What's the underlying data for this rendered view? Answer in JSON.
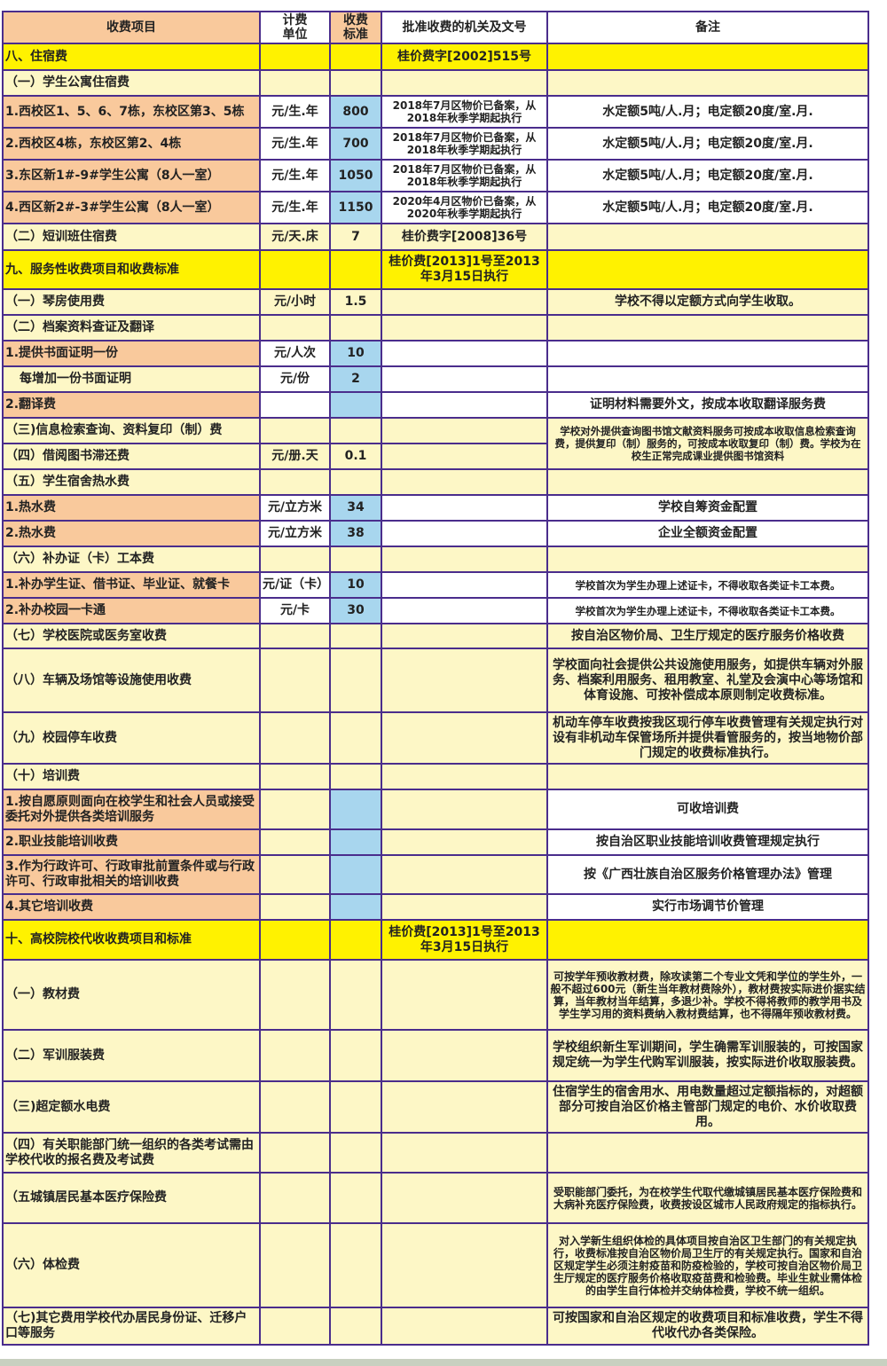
{
  "header": {
    "item": "收费项目",
    "unit": "计费\n单位",
    "price": "收费\n标准",
    "authority": "批准收费的机关及文号",
    "remark": "备注"
  },
  "colors": {
    "border": "#4a2d8c",
    "section": "#fff200",
    "subsection": "#fdf7c6",
    "item": "#f9c99c",
    "price_cell": "#a8d6ee"
  },
  "rows": [
    {
      "kind": "section",
      "item": "八、住宿费",
      "unit": "",
      "price": "",
      "authority": "桂价费字[2002]515号",
      "remark": ""
    },
    {
      "kind": "sub",
      "item": "（一）学生公寓住宿费",
      "unit": "",
      "price": "",
      "authority": "",
      "remark": ""
    },
    {
      "kind": "item",
      "item": "1.西校区1、5、6、7栋，东校区第3、5栋",
      "unit": "元/生.年",
      "price": "800",
      "authority": "2018年7月区物价已备案，从2018年秋季学期起执行",
      "remark": "水定额5吨/人.月；电定额20度/室.月."
    },
    {
      "kind": "item",
      "item": "2.西校区4栋，东校区第2、4栋",
      "unit": "元/生.年",
      "price": "700",
      "authority": "2018年7月区物价已备案，从2018年秋季学期起执行",
      "remark": "水定额5吨/人.月；电定额20度/室.月."
    },
    {
      "kind": "item",
      "item": "3.东区新1#-9#学生公寓（8人一室）",
      "unit": "元/生.年",
      "price": "1050",
      "authority": "2018年7月区物价已备案，从2018年秋季学期起执行",
      "remark": "水定额5吨/人.月；电定额20度/室.月."
    },
    {
      "kind": "item",
      "item": "4.西区新2#-3#学生公寓（8人一室）",
      "unit": "元/生.年",
      "price": "1150",
      "authority": "2020年4月区物价已备案，从2020年秋季学期起执行",
      "remark": "水定额5吨/人.月；电定额20度/室.月."
    },
    {
      "kind": "sub",
      "item": "（二）短训班住宿费",
      "unit": "元/天.床",
      "price": "7",
      "authority": "桂价费字[2008]36号",
      "remark": ""
    },
    {
      "kind": "section",
      "item": "九、服务性收费项目和收费标准",
      "unit": "",
      "price": "",
      "authority": "桂价费[2013]1号至2013年3月15日执行",
      "remark": ""
    },
    {
      "kind": "sub",
      "item": "（一）琴房使用费",
      "unit": "元/小时",
      "price": "1.5",
      "authority": "",
      "remark": "学校不得以定额方式向学生收取。"
    },
    {
      "kind": "sub",
      "item": "（二）档案资料查证及翻译",
      "unit": "",
      "price": "",
      "authority": "",
      "remark": ""
    },
    {
      "kind": "item",
      "item": "1.提供书面证明一份",
      "unit": "元/人次",
      "price": "10",
      "authority": "",
      "remark": ""
    },
    {
      "kind": "item2",
      "item": "　每增加一份书面证明",
      "unit": "元/份",
      "price": "2",
      "authority": "",
      "remark": ""
    },
    {
      "kind": "item",
      "item": "2.翻译费",
      "unit": "",
      "price": "",
      "authority": "",
      "remark": "证明材料需要外文，按成本收取翻译服务费"
    },
    {
      "kind": "sub",
      "item": "（三)信息检索查询、资料复印（制）费",
      "unit": "",
      "price": "",
      "authority": "",
      "remark": "学校对外提供查询图书馆文献资料服务可按成本收取信息检索查询费，提供复印（制）服务的，可按成本收取复印（制）费。学校为在校生正常完成课业提供图书馆资料",
      "remark_span": 2
    },
    {
      "kind": "sub",
      "item": "（四）借阅图书滞还费",
      "unit": "元/册.天",
      "price": "0.1",
      "authority": ""
    },
    {
      "kind": "sub",
      "item": "（五）学生宿舍热水费",
      "unit": "",
      "price": "",
      "authority": "",
      "remark": ""
    },
    {
      "kind": "item",
      "item": "1.热水费",
      "unit": "元/立方米",
      "price": "34",
      "authority": "",
      "remark": "学校自筹资金配置"
    },
    {
      "kind": "item",
      "item": "2.热水费",
      "unit": "元/立方米",
      "price": "38",
      "authority": "",
      "remark": "企业全额资金配置"
    },
    {
      "kind": "sub",
      "item": "（六）补办证（卡）工本费",
      "unit": "",
      "price": "",
      "authority": "",
      "remark": ""
    },
    {
      "kind": "item",
      "item": "1.补办学生证、借书证、毕业证、就餐卡",
      "unit": "元/证（卡）",
      "price": "10",
      "authority": "",
      "remark": "学校首次为学生办理上述证卡，不得收取各类证卡工本费。"
    },
    {
      "kind": "item",
      "item": "2.补办校园一卡通",
      "unit": "元/卡",
      "price": "30",
      "authority": "",
      "remark": "学校首次为学生办理上述证卡，不得收取各类证卡工本费。"
    },
    {
      "kind": "sub",
      "item": "（七）学校医院或医务室收费",
      "unit": "",
      "price": "",
      "authority": "",
      "remark": "按自治区物价局、卫生厅规定的医疗服务价格收费"
    },
    {
      "kind": "sub",
      "item": "（八）车辆及场馆等设施使用收费",
      "unit": "",
      "price": "",
      "authority": "",
      "remark": "学校面向社会提供公共设施使用服务，如提供车辆对外服务、档案利用服务、租用教室、礼堂及会演中心等场馆和体育设施、可按补偿成本原则制定收费标准。"
    },
    {
      "kind": "sub",
      "item": "（九）校园停车收费",
      "unit": "",
      "price": "",
      "authority": "",
      "remark": "机动车停车收费按我区现行停车收费管理有关规定执行对设有非机动车保管场所并提供看管服务的，按当地物价部门规定的收费标准执行。"
    },
    {
      "kind": "sub",
      "item": "（十）培训费",
      "unit": "",
      "price": "",
      "authority": "",
      "remark": ""
    },
    {
      "kind": "item",
      "item": "1.按自愿原则面向在校学生和社会人员或接受委托对外提供各类培训服务",
      "unit": "",
      "price": "",
      "authority": "",
      "remark": "可收培训费"
    },
    {
      "kind": "item",
      "item": "2.职业技能培训收费",
      "unit": "",
      "price": "",
      "authority": "",
      "remark": "按自治区职业技能培训收费管理规定执行"
    },
    {
      "kind": "item",
      "item": "3.作为行政许可、行政审批前置条件或与行政许可、行政审批相关的培训收费",
      "unit": "",
      "price": "",
      "authority": "",
      "remark": "按《广西壮族自治区服务价格管理办法》管理"
    },
    {
      "kind": "item",
      "item": "4.其它培训收费",
      "unit": "",
      "price": "",
      "authority": "",
      "remark": "实行市场调节价管理"
    },
    {
      "kind": "section",
      "item": "十、高校院校代收收费项目和标准",
      "unit": "",
      "price": "",
      "authority": "桂价费[2013]1号至2013年3月15日执行",
      "remark": ""
    },
    {
      "kind": "sub",
      "item": "（一）教材费",
      "unit": "",
      "price": "",
      "authority": "",
      "remark": "可按学年预收教材费，除攻读第二个专业文凭和学位的学生外，一般不超过600元（新生当年教材费除外），教材费按实际进价据实结算，当年教材当年结算，多退少补。学校不得将教师的教学用书及学生学习用的资料费纳入教材费结算，也不得隔年预收教材费。"
    },
    {
      "kind": "sub",
      "item": "（二）军训服装费",
      "unit": "",
      "price": "",
      "authority": "",
      "remark": "学校组织新生军训期间，学生确需军训服装的，可按国家规定统一为学生代购军训服装，按实际进价收取服装费。"
    },
    {
      "kind": "sub",
      "item": "（三)超定额水电费",
      "unit": "",
      "price": "",
      "authority": "",
      "remark": "住宿学生的宿舍用水、用电数量超过定额指标的，对超额部分可按自治区价格主管部门规定的电价、水价收取费用。"
    },
    {
      "kind": "sub",
      "item": "（四）有关职能部门统一组织的各类考试需由学校代收的报名费及考试费",
      "unit": "",
      "price": "",
      "authority": "",
      "remark": ""
    },
    {
      "kind": "sub",
      "item": "（五城镇居民基本医疗保险费",
      "unit": "",
      "price": "",
      "authority": "",
      "remark": "受职能部门委托，为在校学生代取代缴城镇居民基本医疗保险费和大病补充医疗保险费，收费按设区城市人民政府规定的指标执行。"
    },
    {
      "kind": "sub",
      "item": "（六）体检费",
      "unit": "",
      "price": "",
      "authority": "",
      "remark": "对入学新生组织体检的具体项目按自治区卫生部门的有关规定执行，收费标准按自治区物价局卫生厅的有关规定执行。国家和自治区规定学生必须注射疫苗和防疫检验的，学校可按自治区物价局卫生厅规定的医疗服务价格收取疫苗费和检验费。毕业生就业需体检的由学生自行体检并交纳体检费，学校不统一组织。"
    },
    {
      "kind": "sub",
      "item": "（七)其它费用学校代办居民身份证、迁移户口等服务",
      "unit": "",
      "price": "",
      "authority": "",
      "remark": "可按国家和自治区规定的收费项目和标准收费，学生不得代收代办各类保险。"
    }
  ]
}
